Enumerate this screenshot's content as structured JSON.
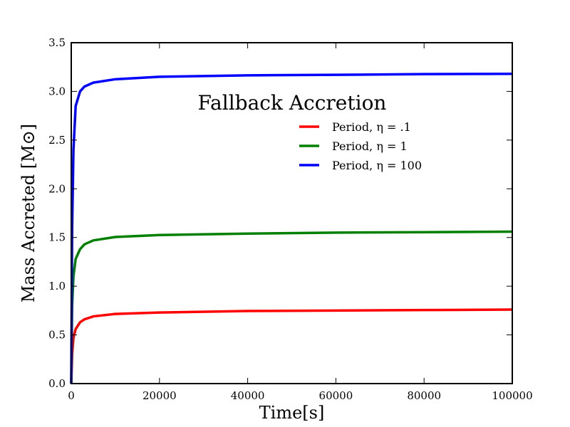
{
  "chart_data": {
    "type": "line",
    "title": "",
    "xlabel": "Time[s]",
    "ylabel": "Mass Accreted [M⊙]",
    "xlim": [
      0,
      100000
    ],
    "ylim": [
      0.0,
      3.5
    ],
    "xticks": [
      0,
      20000,
      40000,
      60000,
      80000,
      100000
    ],
    "xtick_labels": [
      "0",
      "20000",
      "40000",
      "60000",
      "80000",
      "100000"
    ],
    "yticks": [
      0.0,
      0.5,
      1.0,
      1.5,
      2.0,
      2.5,
      3.0,
      3.5
    ],
    "ytick_labels": [
      "0.0",
      "0.5",
      "1.0",
      "1.5",
      "2.0",
      "2.5",
      "3.0",
      "3.5"
    ],
    "grid": false,
    "legend": {
      "title": "Fallback Accretion",
      "placement": "upper-right"
    },
    "series": [
      {
        "name": "Period, η = .1",
        "color": "#ff0000",
        "x": [
          0,
          200,
          500,
          1000,
          2000,
          3000,
          5000,
          10000,
          20000,
          40000,
          60000,
          80000,
          100000
        ],
        "y": [
          0,
          0.3,
          0.47,
          0.56,
          0.63,
          0.66,
          0.69,
          0.715,
          0.73,
          0.745,
          0.75,
          0.755,
          0.76
        ]
      },
      {
        "name": "Period, η = 1",
        "color": "#008000",
        "x": [
          0,
          200,
          500,
          1000,
          2000,
          3000,
          5000,
          10000,
          20000,
          40000,
          60000,
          80000,
          100000
        ],
        "y": [
          0,
          0.8,
          1.1,
          1.28,
          1.38,
          1.43,
          1.47,
          1.505,
          1.525,
          1.54,
          1.55,
          1.555,
          1.56
        ]
      },
      {
        "name": "Period, η = 100",
        "color": "#0000ff",
        "x": [
          0,
          200,
          500,
          1000,
          2000,
          3000,
          5000,
          10000,
          20000,
          40000,
          60000,
          80000,
          100000
        ],
        "y": [
          0,
          1.6,
          2.4,
          2.85,
          3.0,
          3.05,
          3.09,
          3.125,
          3.15,
          3.165,
          3.17,
          3.178,
          3.18
        ]
      }
    ]
  }
}
